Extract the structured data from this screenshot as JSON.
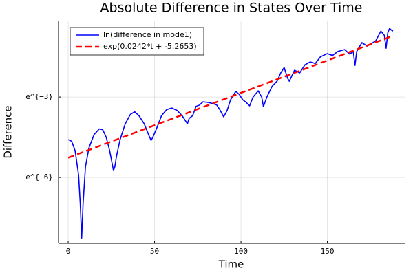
{
  "chart_data": {
    "type": "line",
    "title": "Absolute Difference in States Over Time",
    "xlabel": "Time",
    "ylabel": "Difference",
    "xlim": [
      -5.6,
      194.8
    ],
    "ylim": [
      -8.46,
      -0.15
    ],
    "xticks": [
      0,
      50,
      100,
      150
    ],
    "yticks": [
      {
        "value": -6,
        "label": "e^{−6}"
      },
      {
        "value": -3,
        "label": "e^{−3}"
      }
    ],
    "grid": true,
    "legend": "top-left",
    "series": [
      {
        "name": "ln(difference in mode1)",
        "color": "#0000ff",
        "dash": false,
        "x": [
          0,
          2,
          4,
          6,
          7,
          7.8,
          8.6,
          10,
          12,
          15,
          18,
          20,
          22,
          24,
          25.5,
          26.2,
          27,
          28,
          30,
          33,
          36,
          38.5,
          41,
          44,
          46.5,
          48,
          49,
          51,
          54,
          57,
          60,
          63,
          66,
          68,
          69,
          70,
          72,
          74,
          76,
          78,
          81,
          84,
          86,
          88,
          90,
          92,
          94,
          97,
          99,
          101,
          103,
          105,
          107,
          110,
          112,
          113,
          115,
          118,
          121,
          123,
          125,
          127,
          128,
          131,
          134,
          137,
          140,
          143,
          146,
          150,
          153,
          156,
          160,
          163,
          165,
          166,
          167,
          170,
          173,
          175,
          178,
          181,
          183,
          184,
          185,
          186,
          187,
          188
        ],
        "values": [
          -4.59,
          -4.65,
          -5.0,
          -5.9,
          -7.0,
          -8.26,
          -7.0,
          -5.6,
          -4.9,
          -4.4,
          -4.19,
          -4.22,
          -4.5,
          -5.0,
          -5.5,
          -5.74,
          -5.6,
          -5.2,
          -4.6,
          -4.0,
          -3.65,
          -3.55,
          -3.7,
          -4.0,
          -4.4,
          -4.62,
          -4.5,
          -4.2,
          -3.7,
          -3.47,
          -3.41,
          -3.5,
          -3.7,
          -3.9,
          -4.0,
          -3.8,
          -3.7,
          -3.35,
          -3.3,
          -3.18,
          -3.2,
          -3.25,
          -3.3,
          -3.5,
          -3.74,
          -3.5,
          -3.1,
          -2.79,
          -2.9,
          -3.1,
          -3.2,
          -3.33,
          -3.0,
          -2.77,
          -3.0,
          -3.36,
          -3.0,
          -2.6,
          -2.4,
          -2.1,
          -1.9,
          -2.3,
          -2.41,
          -2.0,
          -2.1,
          -1.8,
          -1.69,
          -1.75,
          -1.5,
          -1.38,
          -1.45,
          -1.3,
          -1.23,
          -1.4,
          -1.3,
          -1.82,
          -1.3,
          -0.97,
          -1.1,
          -1.03,
          -0.9,
          -0.54,
          -0.7,
          -1.18,
          -0.6,
          -0.44,
          -0.5,
          -0.54
        ]
      },
      {
        "name": "exp(0.0242*t + -5.2653)",
        "color": "#ff0000",
        "dash": true,
        "x": [
          0,
          188
        ],
        "values": [
          -5.2653,
          -0.7157
        ]
      }
    ]
  }
}
